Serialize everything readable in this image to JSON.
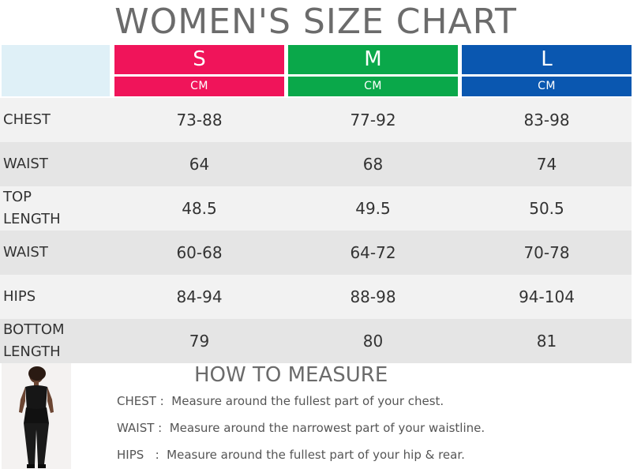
{
  "title": "WOMEN'S SIZE CHART",
  "sizes": [
    {
      "label": "S",
      "unit": "CM",
      "color": "#f0145a"
    },
    {
      "label": "M",
      "unit": "CM",
      "color": "#0aa84a"
    },
    {
      "label": "L",
      "unit": "CM",
      "color": "#0a57b0"
    }
  ],
  "rows": [
    {
      "label": "CHEST",
      "values": [
        "73-88",
        "77-92",
        "83-98"
      ]
    },
    {
      "label": "WAIST",
      "values": [
        "64",
        "68",
        "74"
      ]
    },
    {
      "label": "TOP\nLENGTH",
      "values": [
        "48.5",
        "49.5",
        "50.5"
      ]
    },
    {
      "label": "WAIST",
      "values": [
        "60-68",
        "64-72",
        "70-78"
      ]
    },
    {
      "label": "HIPS",
      "values": [
        "84-94",
        "88-98",
        "94-104"
      ]
    },
    {
      "label": "BOTTOM\nLENGTH",
      "values": [
        "79",
        "80",
        "81"
      ]
    }
  ],
  "how_to": {
    "title": "HOW TO MEASURE",
    "lines": [
      "CHEST :  Measure around the fullest part of your chest.",
      "WAIST :  Measure around the narrowest part of your waistline.",
      "HIPS   :  Measure around the fullest part of your hip & rear."
    ]
  }
}
